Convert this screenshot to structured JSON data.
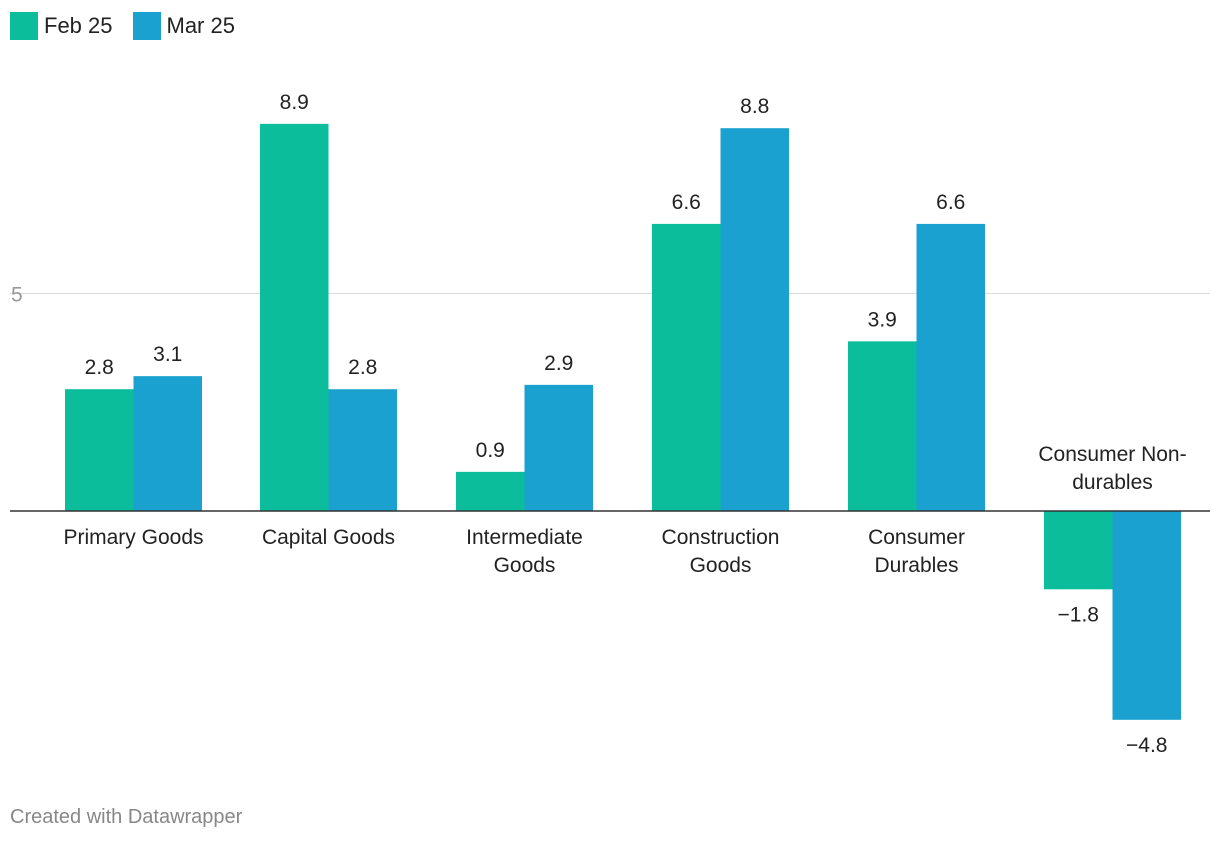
{
  "chart_data": {
    "type": "bar",
    "title": "",
    "xlabel": "",
    "ylabel": "",
    "categories": [
      [
        "Primary Goods"
      ],
      [
        "Capital Goods"
      ],
      [
        "Intermediate",
        "Goods"
      ],
      [
        "Construction",
        "Goods"
      ],
      [
        "Consumer",
        "Durables"
      ],
      [
        "Consumer Non-",
        "durables"
      ]
    ],
    "series": [
      {
        "name": "Feb 25",
        "color": "#0bbd9b",
        "values": [
          2.8,
          8.9,
          0.9,
          6.6,
          3.9,
          -1.8
        ]
      },
      {
        "name": "Mar 25",
        "color": "#1aa1cf",
        "values": [
          3.1,
          2.8,
          2.9,
          8.8,
          6.6,
          -4.8
        ]
      }
    ],
    "value_labels": [
      [
        "2.8",
        "8.9",
        "0.9",
        "6.6",
        "3.9",
        "−1.8"
      ],
      [
        "3.1",
        "2.8",
        "2.9",
        "8.8",
        "6.6",
        "−4.8"
      ]
    ],
    "yticks": [
      5
    ],
    "ytick_labels": [
      "5"
    ],
    "ylim": [
      -6,
      10
    ],
    "grid": true,
    "legend_position": "top-left"
  },
  "footer": {
    "credit": "Created with Datawrapper"
  }
}
